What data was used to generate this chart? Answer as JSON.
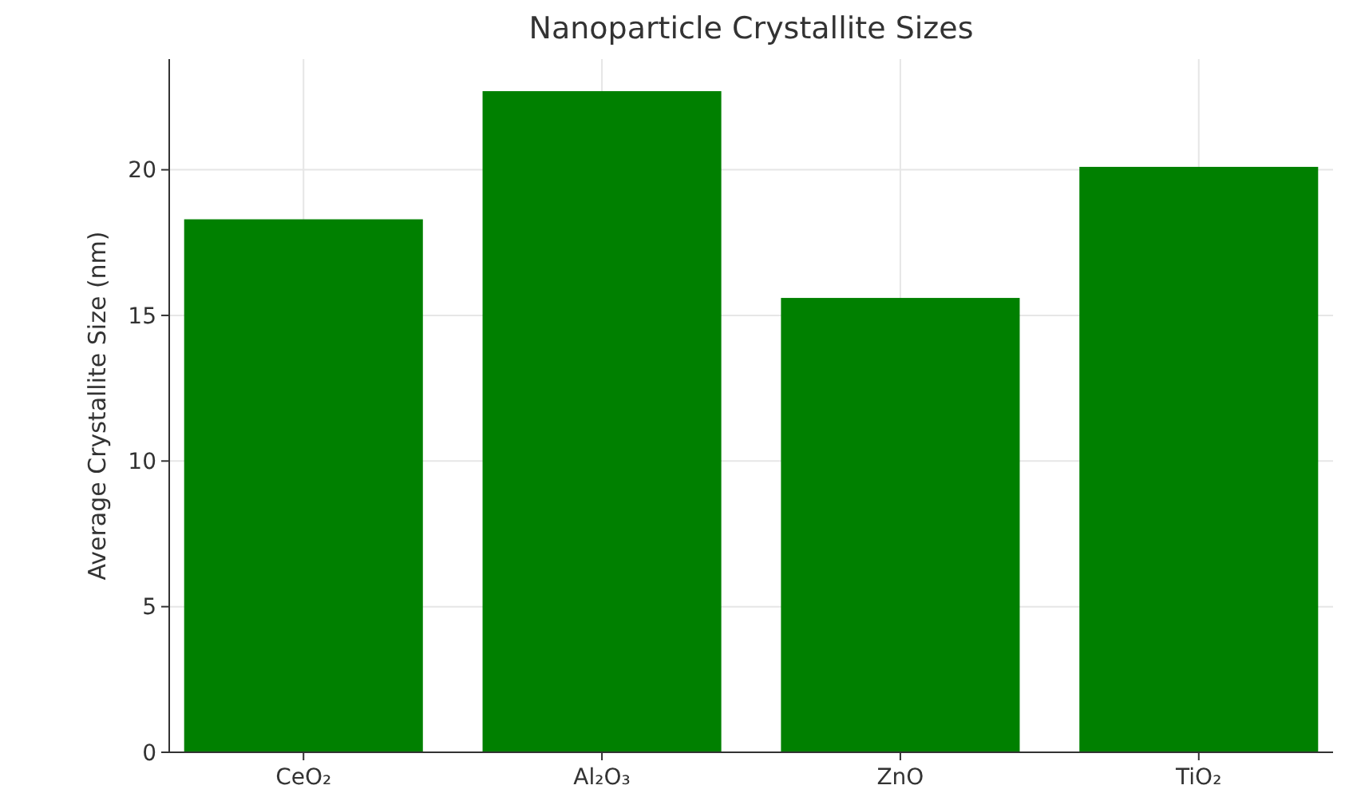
{
  "chart_data": {
    "type": "bar",
    "title": "Nanoparticle Crystallite Sizes",
    "ylabel": "Average Crystallite Size (nm)",
    "categories": [
      "CeO₂",
      "Al₂O₃",
      "ZnO",
      "TiO₂"
    ],
    "values": [
      18.3,
      22.7,
      15.6,
      20.1
    ],
    "color": "#008000",
    "ylim": [
      0,
      23.8
    ],
    "yticks": [
      0,
      5,
      10,
      15,
      20
    ],
    "grid": true
  }
}
